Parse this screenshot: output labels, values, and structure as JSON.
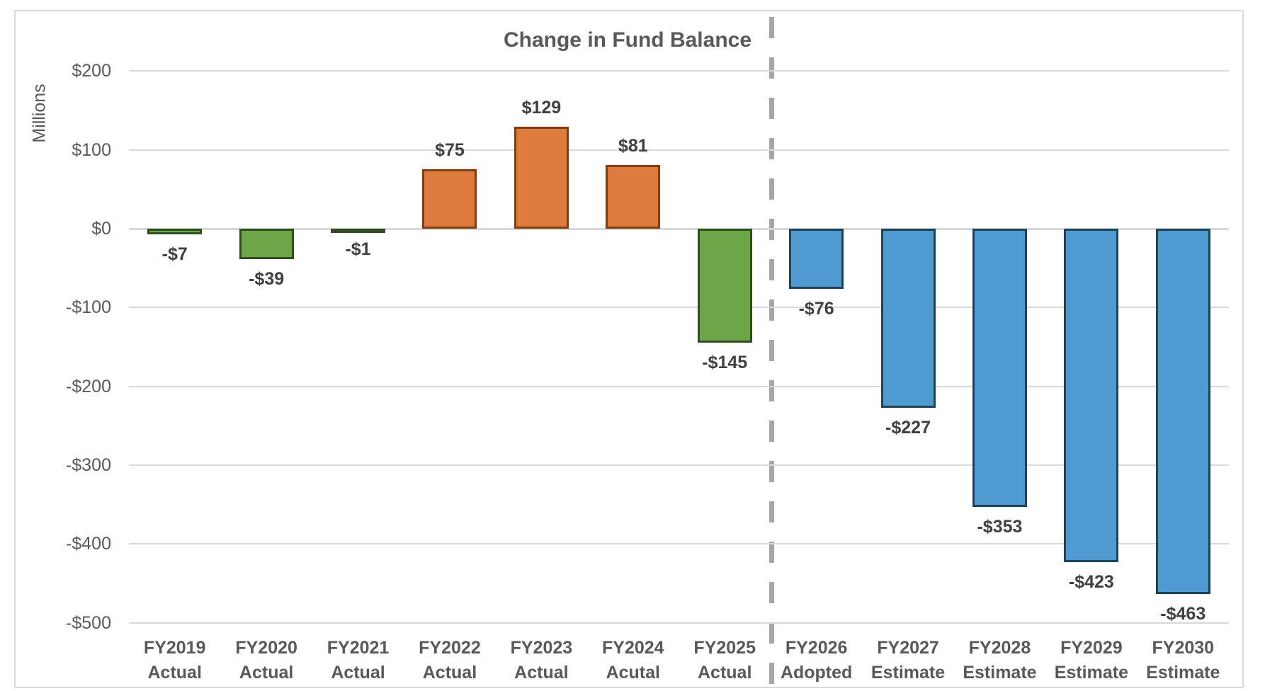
{
  "chart_data": {
    "type": "bar",
    "title": "Change in Fund Balance",
    "ylabel": "Millions",
    "xlabel": "",
    "ylim": [
      -500,
      200
    ],
    "grid": true,
    "legend": "none",
    "unit": "USD millions",
    "yticks": [
      {
        "value": 200,
        "label": "$200"
      },
      {
        "value": 100,
        "label": "$100"
      },
      {
        "value": 0,
        "label": "$0"
      },
      {
        "value": -100,
        "label": "-$100"
      },
      {
        "value": -200,
        "label": "-$200"
      },
      {
        "value": -300,
        "label": "-$300"
      },
      {
        "value": -400,
        "label": "-$400"
      },
      {
        "value": -500,
        "label": "-$500"
      }
    ],
    "bars": [
      {
        "category": "FY2019 Actual",
        "category_lines": [
          "FY2019",
          "Actual"
        ],
        "value": -7,
        "data_label": "-$7",
        "color": "green"
      },
      {
        "category": "FY2020 Actual",
        "category_lines": [
          "FY2020",
          "Actual"
        ],
        "value": -39,
        "data_label": "-$39",
        "color": "green"
      },
      {
        "category": "FY2021 Actual",
        "category_lines": [
          "FY2021",
          "Actual"
        ],
        "value": -1,
        "data_label": "-$1",
        "color": "green"
      },
      {
        "category": "FY2022 Actual",
        "category_lines": [
          "FY2022",
          "Actual"
        ],
        "value": 75,
        "data_label": "$75",
        "color": "orange"
      },
      {
        "category": "FY2023 Actual",
        "category_lines": [
          "FY2023",
          "Actual"
        ],
        "value": 129,
        "data_label": "$129",
        "color": "orange"
      },
      {
        "category": "FY2024 Acutal",
        "category_lines": [
          "FY2024",
          "Acutal"
        ],
        "value": 81,
        "data_label": "$81",
        "color": "orange"
      },
      {
        "category": "FY2025 Actual",
        "category_lines": [
          "FY2025",
          "Actual"
        ],
        "value": -145,
        "data_label": "-$145",
        "color": "green"
      },
      {
        "category": "FY2026 Adopted",
        "category_lines": [
          "FY2026",
          "Adopted"
        ],
        "value": -76,
        "data_label": "-$76",
        "color": "blue"
      },
      {
        "category": "FY2027 Estimate",
        "category_lines": [
          "FY2027",
          "Estimate"
        ],
        "value": -227,
        "data_label": "-$227",
        "color": "blue"
      },
      {
        "category": "FY2028 Estimate",
        "category_lines": [
          "FY2028",
          "Estimate"
        ],
        "value": -353,
        "data_label": "-$353",
        "color": "blue"
      },
      {
        "category": "FY2029 Estimate",
        "category_lines": [
          "FY2029",
          "Estimate"
        ],
        "value": -423,
        "data_label": "-$423",
        "color": "blue"
      },
      {
        "category": "FY2030 Estimate",
        "category_lines": [
          "FY2030",
          "Estimate"
        ],
        "value": -463,
        "data_label": "-$463",
        "color": "blue"
      }
    ],
    "colors": {
      "green": {
        "fill": "#6CA647",
        "border": "#2F4D1E"
      },
      "orange": {
        "fill": "#DC7B3B",
        "border": "#843C0C"
      },
      "blue": {
        "fill": "#4D9BD1",
        "border": "#1F4257"
      },
      "gridline": "#D9D9D9",
      "divider": "#A6A6A6",
      "axis_text": "#595959",
      "data_label_text": "#404040"
    },
    "divider": {
      "style": "dashed",
      "orientation": "vertical",
      "position": "between FY2025 Actual and FY2026 Adopted"
    }
  }
}
